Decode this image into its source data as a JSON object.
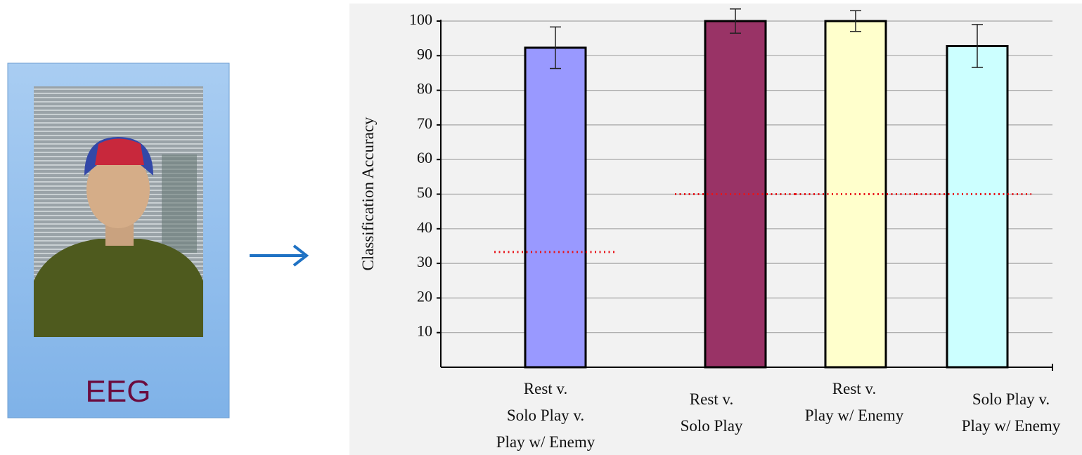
{
  "panel": {
    "label": "EEG"
  },
  "chart_data": {
    "type": "bar",
    "y_label": "Classification Accuracy",
    "categories": [
      [
        "Rest v.",
        "Solo Play v.",
        "Play w/ Enemy"
      ],
      [
        "Rest v.",
        "Solo Play"
      ],
      [
        "Rest v.",
        "Play w/ Enemy"
      ],
      [
        "Solo Play v.",
        "Play w/ Enemy"
      ]
    ],
    "values": [
      92.3,
      100,
      100,
      92.8
    ],
    "errors": [
      6,
      3.5,
      3,
      6.2
    ],
    "colors": [
      "#9999ff",
      "#993366",
      "#ffffcc",
      "#ccffff"
    ],
    "chance_levels": [
      33.3,
      50,
      50,
      50
    ],
    "ylim": [
      0,
      100
    ],
    "yticks": [
      10,
      20,
      30,
      40,
      50,
      60,
      70,
      80,
      90,
      100
    ],
    "grid": true
  }
}
